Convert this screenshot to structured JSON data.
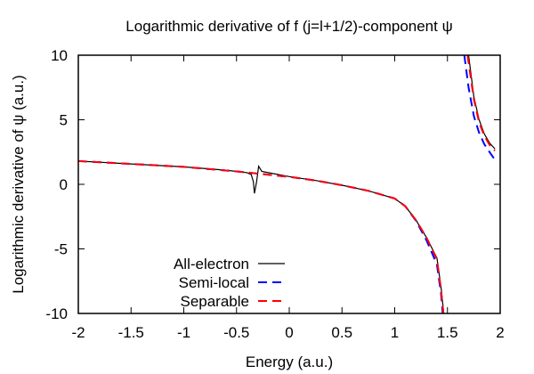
{
  "chart_data": {
    "type": "line",
    "title": "Logarithmic derivative of f (j=l+1/2)-component ψ",
    "xlabel": "Energy (a.u.)",
    "ylabel": "Logarithmic derivative of ψ (a.u.)",
    "xlim": [
      -2,
      2
    ],
    "ylim": [
      -10,
      10
    ],
    "xticks": [
      "-2",
      "-1.5",
      "-1",
      "-0.5",
      "0",
      "0.5",
      "1",
      "1.5",
      "2"
    ],
    "yticks": [
      "-10",
      "-5",
      "0",
      "5",
      "10"
    ],
    "grid": false,
    "legend_position": "bottom-left",
    "series": [
      {
        "name": "All-electron",
        "color": "#000000",
        "dash": "solid",
        "branches": [
          [
            [
              -2,
              1.8
            ],
            [
              -1.5,
              1.58
            ],
            [
              -1,
              1.35
            ],
            [
              -0.6,
              1.1
            ],
            [
              -0.4,
              0.9
            ],
            [
              -0.36,
              0.75
            ],
            [
              -0.34,
              0.2
            ],
            [
              -0.33,
              -0.7
            ],
            [
              -0.31,
              0.2
            ],
            [
              -0.29,
              1.4
            ],
            [
              -0.26,
              1.0
            ],
            [
              -0.2,
              0.9
            ],
            [
              0,
              0.6
            ],
            [
              0.25,
              0.3
            ],
            [
              0.5,
              -0.07
            ],
            [
              0.75,
              -0.5
            ],
            [
              1.0,
              -1.1
            ],
            [
              1.1,
              -1.7
            ],
            [
              1.2,
              -2.75
            ],
            [
              1.3,
              -4.1
            ],
            [
              1.4,
              -5.7
            ],
            [
              1.44,
              -8
            ],
            [
              1.465,
              -10
            ]
          ],
          [
            [
              1.7,
              10
            ],
            [
              1.75,
              6.8
            ],
            [
              1.8,
              5.0
            ],
            [
              1.85,
              3.9
            ],
            [
              1.9,
              3.2
            ],
            [
              1.95,
              2.75
            ]
          ]
        ]
      },
      {
        "name": "Semi-local",
        "color": "#0000ff",
        "dash": "dashed",
        "branches": [
          [
            [
              -2,
              1.8
            ],
            [
              -1.5,
              1.58
            ],
            [
              -1,
              1.35
            ],
            [
              -0.5,
              1.0
            ],
            [
              0,
              0.58
            ],
            [
              0.25,
              0.3
            ],
            [
              0.5,
              -0.07
            ],
            [
              0.75,
              -0.5
            ],
            [
              1.0,
              -1.1
            ],
            [
              1.1,
              -1.7
            ],
            [
              1.2,
              -2.8
            ],
            [
              1.3,
              -4.3
            ],
            [
              1.4,
              -6.2
            ],
            [
              1.44,
              -8.5
            ],
            [
              1.455,
              -10
            ]
          ],
          [
            [
              1.66,
              10
            ],
            [
              1.7,
              7.5
            ],
            [
              1.75,
              5.3
            ],
            [
              1.8,
              4.0
            ],
            [
              1.85,
              3.1
            ],
            [
              1.9,
              2.5
            ],
            [
              1.95,
              1.9
            ]
          ]
        ]
      },
      {
        "name": "Separable",
        "color": "#ff0000",
        "dash": "dashed",
        "branches": [
          [
            [
              -2,
              1.8
            ],
            [
              -1.5,
              1.58
            ],
            [
              -1,
              1.35
            ],
            [
              -0.5,
              1.0
            ],
            [
              0,
              0.58
            ],
            [
              0.25,
              0.3
            ],
            [
              0.5,
              -0.07
            ],
            [
              0.75,
              -0.5
            ],
            [
              1.0,
              -1.1
            ],
            [
              1.1,
              -1.7
            ],
            [
              1.2,
              -2.75
            ],
            [
              1.3,
              -4.1
            ],
            [
              1.4,
              -5.8
            ],
            [
              1.44,
              -8.2
            ],
            [
              1.462,
              -10
            ]
          ],
          [
            [
              1.69,
              10
            ],
            [
              1.75,
              6.6
            ],
            [
              1.8,
              4.8
            ],
            [
              1.85,
              3.75
            ],
            [
              1.9,
              3.05
            ],
            [
              1.95,
              2.6
            ]
          ]
        ]
      }
    ]
  }
}
